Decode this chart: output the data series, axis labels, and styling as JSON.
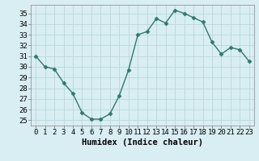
{
  "x": [
    0,
    1,
    2,
    3,
    4,
    5,
    6,
    7,
    8,
    9,
    10,
    11,
    12,
    13,
    14,
    15,
    16,
    17,
    18,
    19,
    20,
    21,
    22,
    23
  ],
  "y": [
    31.0,
    30.0,
    29.8,
    28.5,
    27.5,
    25.7,
    25.1,
    25.1,
    25.6,
    27.3,
    29.7,
    33.0,
    33.3,
    34.5,
    34.1,
    35.3,
    35.0,
    34.6,
    34.2,
    32.3,
    31.2,
    31.8,
    31.6,
    30.5
  ],
  "line_color": "#2d7a6a",
  "marker": "D",
  "marker_size": 2.5,
  "bg_color": "#d8eef2",
  "grid_color": "#b8d8dc",
  "xlabel": "Humidex (Indice chaleur)",
  "ylim": [
    24.5,
    35.8
  ],
  "xlim": [
    -0.5,
    23.5
  ],
  "yticks": [
    25,
    26,
    27,
    28,
    29,
    30,
    31,
    32,
    33,
    34,
    35
  ],
  "xticks": [
    0,
    1,
    2,
    3,
    4,
    5,
    6,
    7,
    8,
    9,
    10,
    11,
    12,
    13,
    14,
    15,
    16,
    17,
    18,
    19,
    20,
    21,
    22,
    23
  ],
  "xtick_labels": [
    "0",
    "1",
    "2",
    "3",
    "4",
    "5",
    "6",
    "7",
    "8",
    "9",
    "10",
    "11",
    "12",
    "13",
    "14",
    "15",
    "16",
    "17",
    "18",
    "19",
    "20",
    "21",
    "22",
    "23"
  ],
  "tick_fontsize": 6.5,
  "xlabel_fontsize": 7.5,
  "spine_color": "#888888"
}
